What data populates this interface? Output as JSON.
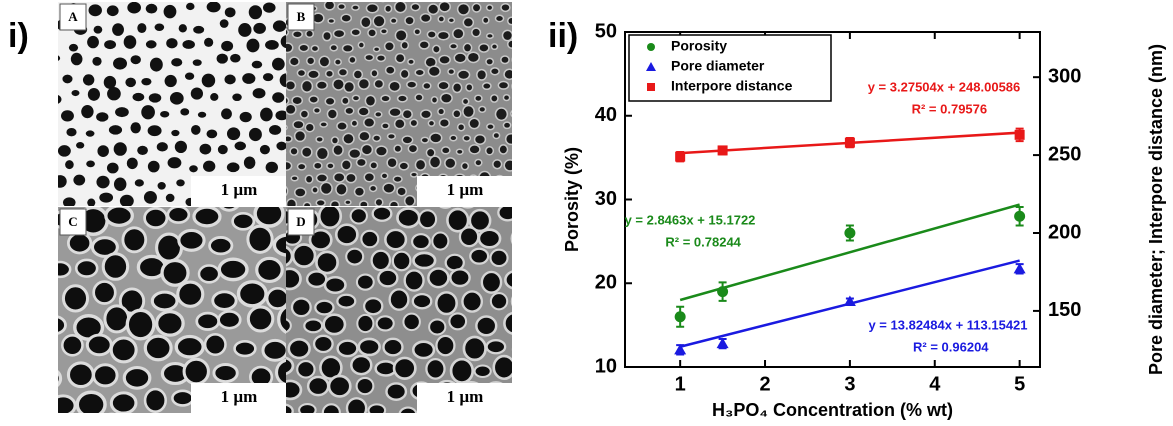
{
  "panel_labels": [
    "i)",
    "ii)"
  ],
  "images": [
    {
      "label": "A",
      "scale": "1 µm"
    },
    {
      "label": "B",
      "scale": "1 µm"
    },
    {
      "label": "C",
      "scale": "1 µm"
    },
    {
      "label": "D",
      "scale": "1 µm"
    }
  ],
  "chart_data": {
    "type": "scatter",
    "x_label": "H₃PO₄ Concentration (% wt)",
    "y_label": "Porosity (%)",
    "y2_label": "Pore diameter; Interpore distance (nm)",
    "x": [
      1,
      1.5,
      3,
      5
    ],
    "xlim": [
      0.35,
      5.24
    ],
    "xticks": [
      1,
      2,
      3,
      4,
      5
    ],
    "ylim": [
      10,
      50
    ],
    "yticks": [
      10,
      20,
      30,
      40,
      50
    ],
    "y2lim": [
      114,
      329
    ],
    "y2ticks": [
      150,
      200,
      250,
      300
    ],
    "legend": "top-left",
    "trend_x": [
      1,
      5
    ],
    "series": [
      {
        "name": "Porosity",
        "color": "#1a8a1a",
        "marker": "circle",
        "axis": "y",
        "values": [
          16,
          19,
          26,
          28
        ],
        "errors": [
          1.2,
          1.1,
          0.9,
          1.1
        ],
        "trend": [
          18.0,
          29.4
        ]
      },
      {
        "name": "Pore diameter",
        "color": "#1a1ae0",
        "marker": "triangle",
        "axis": "y2",
        "values": [
          125,
          129,
          156,
          177
        ],
        "errors": [
          3,
          3,
          2,
          3
        ],
        "trend": [
          127,
          182.3
        ]
      },
      {
        "name": "Interpore distance",
        "color": "#e81818",
        "marker": "square",
        "axis": "y2",
        "values": [
          249,
          253,
          258,
          263
        ],
        "errors": [
          3,
          2.5,
          3,
          4
        ],
        "trend": [
          251.3,
          264.4
        ]
      }
    ],
    "annotations": [
      {
        "lines": [
          "y = 3.27504x + 248.00586",
          "R² = 0.79576"
        ],
        "color": "#e81818"
      },
      {
        "lines": [
          "y = 2.8463x + 15.1722",
          "R² = 0.78244"
        ],
        "color": "#1a8a1a"
      },
      {
        "lines": [
          "y = 13.82484x + 113.15421",
          "R² = 0.96204"
        ],
        "color": "#1a1ae0"
      }
    ]
  }
}
